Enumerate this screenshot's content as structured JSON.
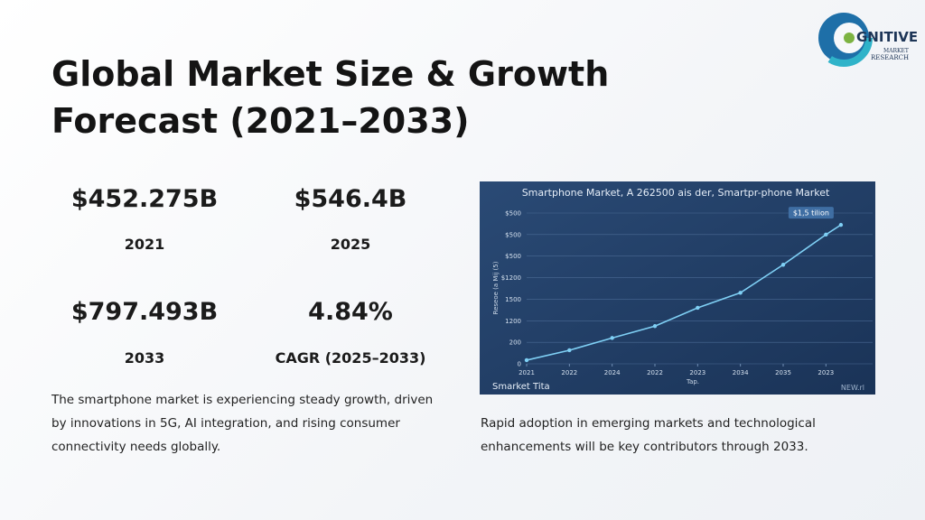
{
  "title": "Global Market Size & Growth Forecast (2021–2033)",
  "stats": [
    {
      "value": "$452.275B",
      "label": "2021"
    },
    {
      "value": "$546.4B",
      "label": "2025"
    },
    {
      "value": "$797.493B",
      "label": "2033"
    },
    {
      "value": "4.84%",
      "label": "CAGR (2025–2033)"
    }
  ],
  "description": "The smartphone market is experiencing steady growth, driven by innovations in 5G, AI integration, and rising consumer connectivity needs globally.",
  "footer": "Rapid adoption in emerging markets and technological enhancements will be key contributors through 2033.",
  "logo": {
    "brand": "GNITIVE",
    "line1": "MARKET",
    "line2": "RESEARCH"
  },
  "chart": {
    "type": "line",
    "title": "Smartphone Market, A 262500 ais der, Smartpr-phone Market",
    "ylabel": "Reseoe (a Mij (5)",
    "xlabel": "Tap.",
    "annotation": "$1,5 tilion",
    "caption": "Smarket Tita",
    "watermark": "NEW.rl",
    "color": "#7fd0f5",
    "x": [
      0.0,
      1.0,
      2.0,
      3.0,
      4.0,
      5.0,
      6.0,
      7.0,
      7.35
    ],
    "values": [
      0.17,
      0.63,
      1.2,
      1.75,
      2.6,
      3.3,
      4.6,
      6.0,
      6.45
    ],
    "xlim": [
      0,
      7.5
    ],
    "xticks": [
      {
        "value": 0,
        "label": "2021"
      },
      {
        "value": 1,
        "label": "2022"
      },
      {
        "value": 2,
        "label": "2024"
      },
      {
        "value": 3,
        "label": "2022"
      },
      {
        "value": 4,
        "label": "2023"
      },
      {
        "value": 5,
        "label": "2034"
      },
      {
        "value": 6,
        "label": "2035"
      },
      {
        "value": 7,
        "label": "2023"
      }
    ],
    "ylim": [
      0,
      7
    ],
    "yticks": [
      0,
      {
        "value": 1,
        "label": "200"
      },
      {
        "value": 2,
        "label": "1200"
      },
      {
        "value": 3,
        "label": "1500"
      },
      {
        "value": 4,
        "label": "$1200"
      },
      {
        "value": 5,
        "label": "$500"
      },
      {
        "value": 6,
        "label": "$500"
      },
      {
        "value": 7,
        "label": "$500"
      }
    ],
    "grid": true
  }
}
